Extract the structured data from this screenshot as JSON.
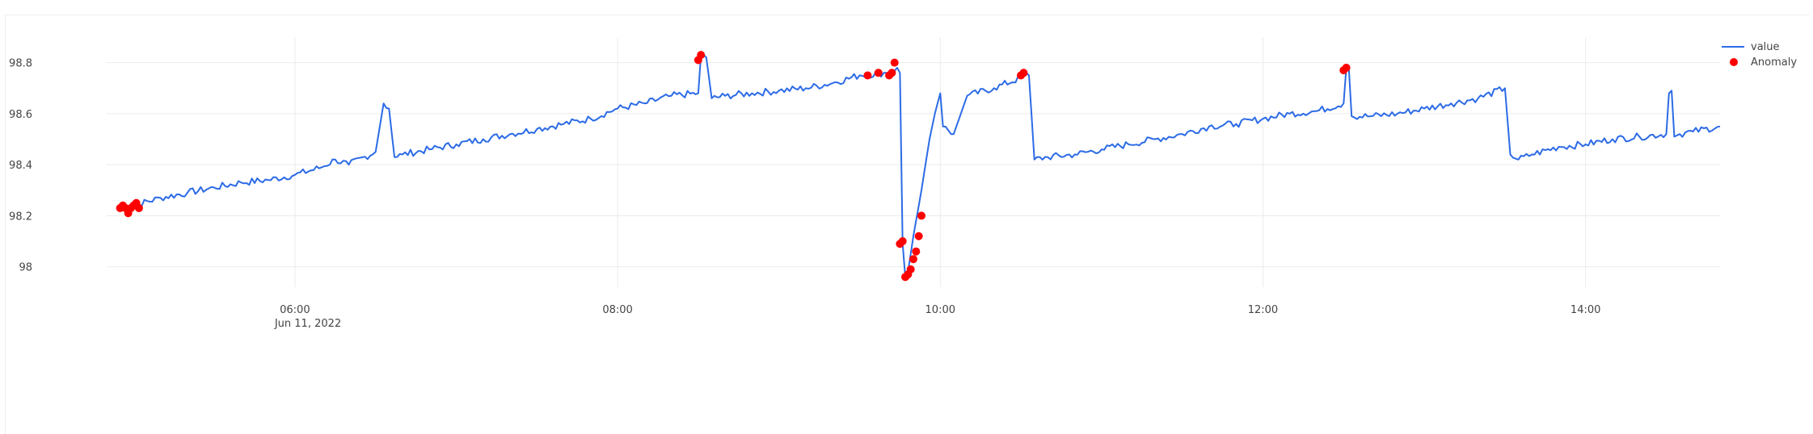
{
  "chart_data": {
    "type": "line",
    "title": "",
    "xlabel": "",
    "ylabel": "",
    "date_label": "Jun 11, 2022",
    "x_ticks": [
      "06:00",
      "08:00",
      "10:00",
      "12:00",
      "14:00"
    ],
    "y_ticks": [
      "98",
      "98.2",
      "98.4",
      "98.6",
      "98.8"
    ],
    "xlim": [
      "04:50",
      "14:50"
    ],
    "ylim": [
      97.92,
      98.9
    ],
    "grid": true,
    "legend_position": "top-right",
    "colors": {
      "line": "#2c6be6",
      "anomaly": "#ff0000",
      "grid": "#ebebeb",
      "axis_text": "#444444"
    },
    "series": [
      {
        "name": "value",
        "mode": "line",
        "x": [
          "04:55",
          "05:00",
          "05:10",
          "05:20",
          "05:30",
          "05:40",
          "05:50",
          "06:00",
          "06:10",
          "06:15",
          "06:20",
          "06:30",
          "06:33",
          "06:35",
          "06:37",
          "06:40",
          "06:50",
          "07:00",
          "07:10",
          "07:20",
          "07:30",
          "07:40",
          "07:50",
          "08:00",
          "08:10",
          "08:20",
          "08:30",
          "08:31",
          "08:33",
          "08:35",
          "08:40",
          "08:50",
          "09:00",
          "09:10",
          "09:20",
          "09:30",
          "09:40",
          "09:44",
          "09:45",
          "09:46",
          "09:47",
          "09:48",
          "09:50",
          "09:53",
          "09:56",
          "09:58",
          "10:00",
          "10:01",
          "10:05",
          "10:10",
          "10:20",
          "10:30",
          "10:32",
          "10:33",
          "10:35",
          "10:40",
          "10:50",
          "11:00",
          "11:10",
          "11:20",
          "11:30",
          "11:40",
          "11:50",
          "12:00",
          "12:10",
          "12:20",
          "12:30",
          "12:31",
          "12:32",
          "12:33",
          "12:40",
          "12:50",
          "13:00",
          "13:10",
          "13:20",
          "13:30",
          "13:32",
          "13:35",
          "13:40",
          "13:50",
          "14:00",
          "14:10",
          "14:20",
          "14:30",
          "14:31",
          "14:32",
          "14:33",
          "14:35",
          "14:40",
          "14:50"
        ],
        "y": [
          98.23,
          98.24,
          98.27,
          98.29,
          98.31,
          98.33,
          98.34,
          98.36,
          98.39,
          98.42,
          98.4,
          98.45,
          98.64,
          98.62,
          98.43,
          98.44,
          98.46,
          98.48,
          98.5,
          98.52,
          98.54,
          98.56,
          98.58,
          98.62,
          98.64,
          98.67,
          98.68,
          98.83,
          98.82,
          98.66,
          98.67,
          98.68,
          98.69,
          98.7,
          98.72,
          98.75,
          98.76,
          98.78,
          98.76,
          98.09,
          97.96,
          97.98,
          98.12,
          98.3,
          98.5,
          98.6,
          98.68,
          98.55,
          98.52,
          98.67,
          98.7,
          98.74,
          98.76,
          98.75,
          98.42,
          98.43,
          98.44,
          98.46,
          98.48,
          98.5,
          98.52,
          98.55,
          98.56,
          98.58,
          98.6,
          98.61,
          98.64,
          98.78,
          98.77,
          98.59,
          98.59,
          98.6,
          98.62,
          98.64,
          98.66,
          98.7,
          98.44,
          98.42,
          98.44,
          98.47,
          98.48,
          98.5,
          98.51,
          98.52,
          98.68,
          98.69,
          98.51,
          98.52,
          98.53,
          98.55
        ]
      },
      {
        "name": "Anomaly",
        "mode": "markers",
        "x": [
          "04:55",
          "04:56",
          "04:57",
          "04:58",
          "04:59",
          "05:00",
          "05:01",
          "05:02",
          "08:30",
          "08:31",
          "09:33",
          "09:37",
          "09:41",
          "09:42",
          "09:43",
          "09:45",
          "09:46",
          "09:47",
          "09:48",
          "09:49",
          "09:50",
          "09:51",
          "09:52",
          "09:53",
          "10:30",
          "10:31",
          "12:30",
          "12:31"
        ],
        "y": [
          98.23,
          98.24,
          98.23,
          98.21,
          98.23,
          98.24,
          98.25,
          98.23,
          98.81,
          98.83,
          98.75,
          98.76,
          98.75,
          98.76,
          98.8,
          98.09,
          98.1,
          97.96,
          97.97,
          97.99,
          98.03,
          98.06,
          98.12,
          98.2,
          98.75,
          98.76,
          98.77,
          98.78
        ]
      }
    ]
  }
}
